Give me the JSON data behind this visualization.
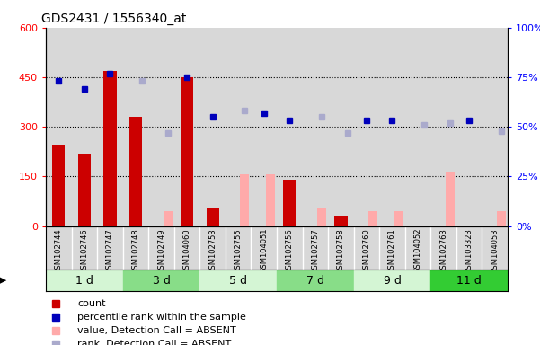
{
  "title": "GDS2431 / 1556340_at",
  "samples": [
    "GSM102744",
    "GSM102746",
    "GSM102747",
    "GSM102748",
    "GSM102749",
    "GSM104060",
    "GSM102753",
    "GSM102755",
    "GSM104051",
    "GSM102756",
    "GSM102757",
    "GSM102758",
    "GSM102760",
    "GSM102761",
    "GSM104052",
    "GSM102763",
    "GSM103323",
    "GSM104053"
  ],
  "time_groups": [
    {
      "label": "1 d",
      "start": 0,
      "end": 3,
      "color": "#d4f5d4"
    },
    {
      "label": "3 d",
      "start": 3,
      "end": 6,
      "color": "#88dd88"
    },
    {
      "label": "5 d",
      "start": 6,
      "end": 9,
      "color": "#d4f5d4"
    },
    {
      "label": "7 d",
      "start": 9,
      "end": 12,
      "color": "#88dd88"
    },
    {
      "label": "9 d",
      "start": 12,
      "end": 15,
      "color": "#d4f5d4"
    },
    {
      "label": "11 d",
      "start": 15,
      "end": 18,
      "color": "#33cc33"
    }
  ],
  "count_values": [
    245,
    220,
    470,
    330,
    null,
    450,
    55,
    null,
    null,
    140,
    null,
    30,
    null,
    null,
    null,
    null,
    null,
    null
  ],
  "absent_bar_values": [
    null,
    null,
    null,
    null,
    45,
    null,
    null,
    155,
    155,
    null,
    55,
    null,
    45,
    45,
    null,
    165,
    null,
    45
  ],
  "percentile_rank_pct": [
    73,
    69,
    77,
    null,
    null,
    75,
    55,
    null,
    57,
    53,
    null,
    null,
    53,
    53,
    null,
    null,
    53,
    null
  ],
  "absent_rank_pct": [
    null,
    null,
    null,
    73,
    47,
    null,
    null,
    58,
    null,
    null,
    55,
    47,
    null,
    null,
    51,
    52,
    null,
    48
  ],
  "ylim_left": [
    0,
    600
  ],
  "ylim_right": [
    0,
    100
  ],
  "yticks_left": [
    0,
    150,
    300,
    450,
    600
  ],
  "yticks_right": [
    0,
    25,
    50,
    75,
    100
  ],
  "bar_width": 0.5,
  "count_color": "#cc0000",
  "absent_bar_color": "#ffaaaa",
  "percentile_color": "#0000bb",
  "absent_rank_color": "#aaaacc",
  "col_bg_color": "#d8d8d8",
  "plot_bg": "#ffffff"
}
